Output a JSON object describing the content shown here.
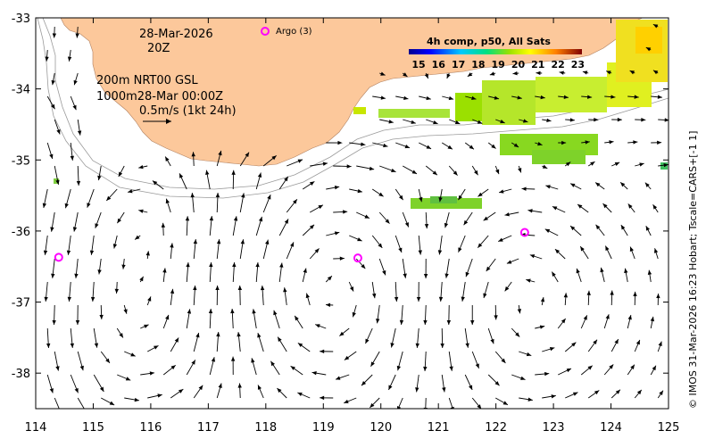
{
  "map": {
    "date": "28-Mar-2026",
    "time": "20Z",
    "legend_line1": "200m  NRT00 GSL",
    "legend_line2": "1000m28-Mar 00:00Z",
    "scale_label": "0.5m/s (1kt 24h)",
    "argo_label": "Argo (3)",
    "colorbar_title": "4h comp, p50, All Sats",
    "colorbar_ticks": [
      "15",
      "16",
      "17",
      "18",
      "19",
      "20",
      "21",
      "22",
      "23"
    ],
    "credit": "© IMOS 31-Mar-2026 16:23 Hobart; Tscale=CARS+[-1 1]",
    "x_ticks": [
      "114",
      "115",
      "116",
      "117",
      "118",
      "119",
      "120",
      "121",
      "122",
      "123",
      "124",
      "125"
    ],
    "y_ticks": [
      "-33",
      "-34",
      "-35",
      "-36",
      "-37",
      "-38"
    ],
    "lon_range": [
      114,
      125
    ],
    "lat_range": [
      -38.5,
      -33
    ],
    "colors": {
      "land": "#fcc89b",
      "argo": "#ff00ff",
      "isobath": "#9a9a9a"
    },
    "argo_floats": [
      {
        "lon": 114.4,
        "lat": -36.37
      },
      {
        "lon": 119.6,
        "lat": -36.38
      },
      {
        "lon": 122.5,
        "lat": -36.02
      }
    ]
  }
}
